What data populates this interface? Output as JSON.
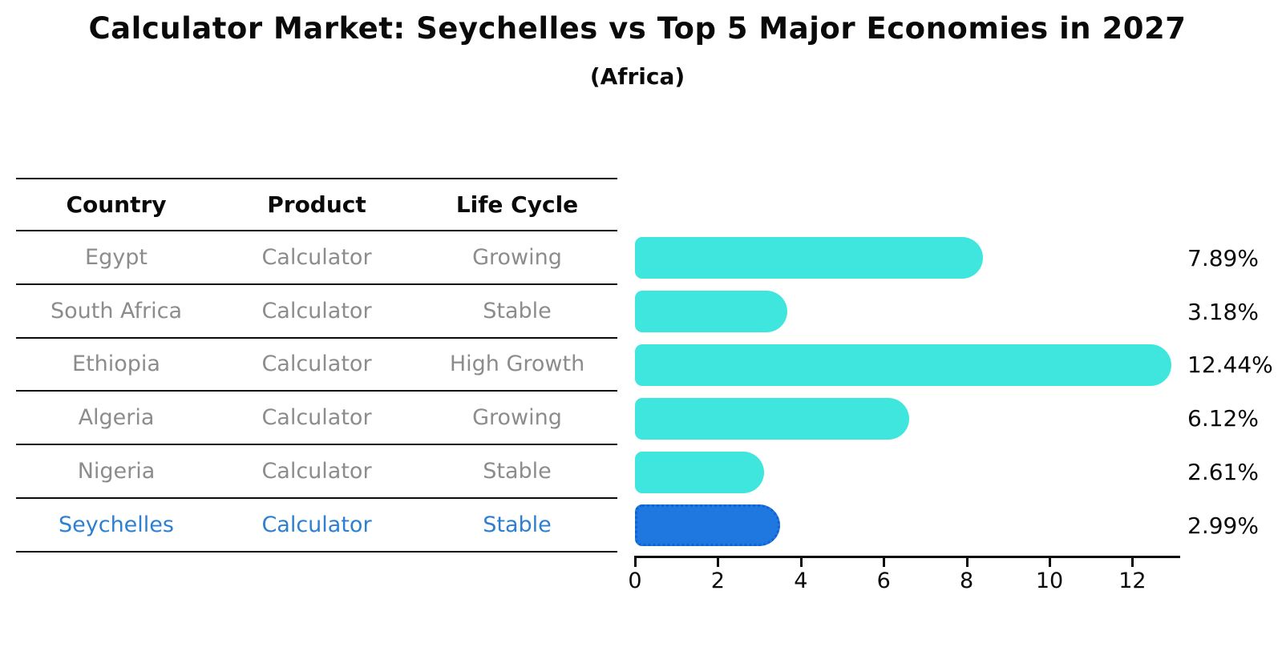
{
  "title": "Calculator Market: Seychelles vs Top 5 Major Economies in 2027",
  "subtitle": "(Africa)",
  "colors": {
    "ink": "#0a0a0a",
    "muted_text": "#8c8c8c",
    "bar_default": "#3ee6de",
    "bar_highlight": "#1f78e0",
    "bar_highlight_edge": "#0e62d6",
    "highlight_text": "#2d7fd1",
    "background": "#ffffff"
  },
  "chart_data": {
    "type": "bar",
    "orientation": "horizontal",
    "title": "Calculator Market: Seychelles vs Top 5 Major Economies in 2027",
    "subtitle": "(Africa)",
    "columns": [
      "Country",
      "Product",
      "Life Cycle"
    ],
    "rows": [
      {
        "country": "Egypt",
        "product": "Calculator",
        "life_cycle": "Growing",
        "value": 7.89,
        "label": "7.89%",
        "highlight": false
      },
      {
        "country": "South Africa",
        "product": "Calculator",
        "life_cycle": "Stable",
        "value": 3.18,
        "label": "3.18%",
        "highlight": false
      },
      {
        "country": "Ethiopia",
        "product": "Calculator",
        "life_cycle": "High Growth",
        "value": 12.44,
        "label": "12.44%",
        "highlight": false
      },
      {
        "country": "Algeria",
        "product": "Calculator",
        "life_cycle": "Growing",
        "value": 6.12,
        "label": "6.12%",
        "highlight": false
      },
      {
        "country": "Nigeria",
        "product": "Calculator",
        "life_cycle": "Stable",
        "value": 2.61,
        "label": "2.61%",
        "highlight": false
      },
      {
        "country": "Seychelles",
        "product": "Calculator",
        "life_cycle": "Stable",
        "value": 2.99,
        "label": "2.99%",
        "highlight": true
      }
    ],
    "xticks": [
      0,
      2,
      4,
      6,
      8,
      10,
      12
    ],
    "xlim": [
      0,
      13.1
    ],
    "value_unit": "%",
    "grid": false,
    "legend": false
  }
}
